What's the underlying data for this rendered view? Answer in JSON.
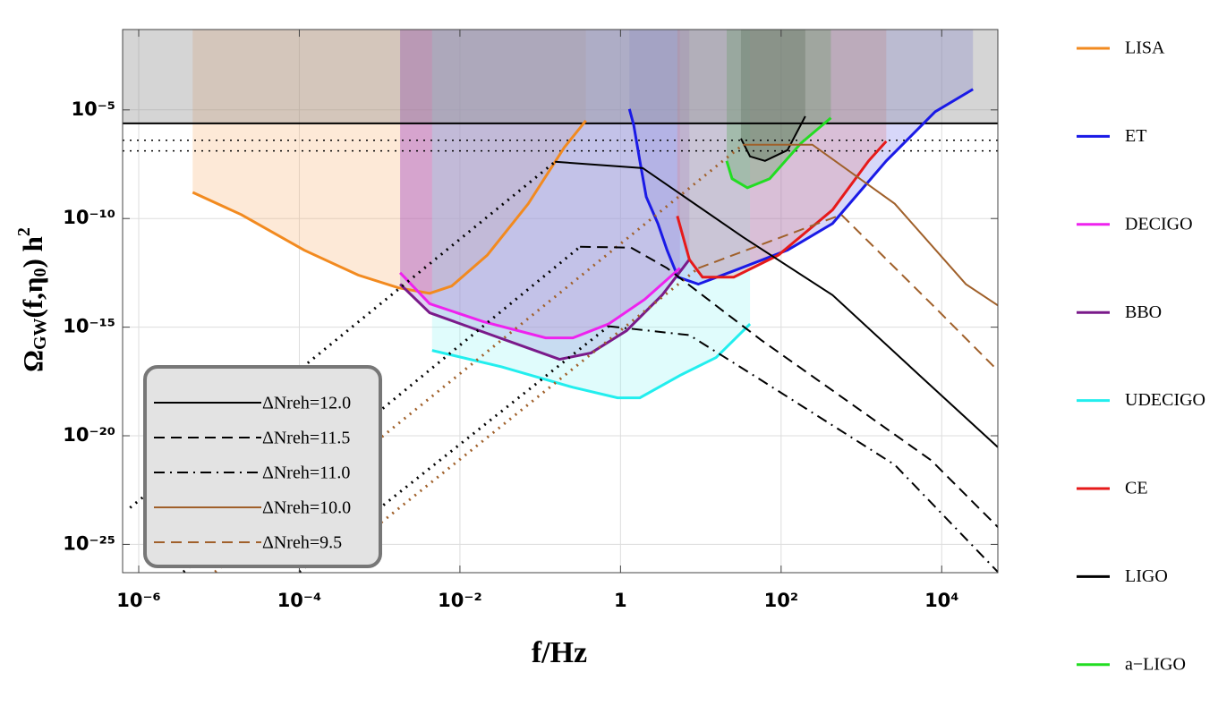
{
  "chart_data": {
    "type": "line",
    "xlabel": "f/Hz",
    "ylabel": [
      "Ω",
      "GW",
      "(f,η",
      "0",
      ") h",
      "2"
    ],
    "xlog": true,
    "ylog": true,
    "grid": true,
    "xlim": [
      6.3e-07,
      50000.0
    ],
    "ylim": [
      5e-27,
      0.05
    ],
    "xticks": [
      {
        "value": 1e-06,
        "label": "10⁻⁶"
      },
      {
        "value": 0.0001,
        "label": "10⁻⁴"
      },
      {
        "value": 0.01,
        "label": "10⁻²"
      },
      1,
      {
        "value": 100,
        "label": "10²"
      },
      {
        "value": 10000.0,
        "label": "10⁴"
      }
    ],
    "yticks": [
      {
        "value": 1e-05,
        "label": "10⁻⁵"
      },
      {
        "value": 1e-10,
        "label": "10⁻¹⁰"
      },
      {
        "value": 1e-15,
        "label": "10⁻¹⁵"
      },
      {
        "value": 1e-20,
        "label": "10⁻²⁰"
      },
      {
        "value": 1e-25,
        "label": "10⁻²⁵"
      }
    ],
    "hlines": [
      {
        "value": 2.4e-06,
        "style": "solid",
        "shade": true
      },
      {
        "value": 4e-07,
        "style": "dotted"
      },
      {
        "value": 1.3e-07,
        "style": "dotted"
      }
    ],
    "detectors": [
      {
        "name": "LISA",
        "color": "#f28a1f",
        "fill": "#f8b070",
        "x": [
          4.7e-06,
          1.9e-05,
          0.000115,
          0.00054,
          0.0017,
          0.0042,
          0.0079,
          0.022,
          0.071,
          0.2,
          0.37
        ],
        "values": [
          1.6e-09,
          1.5e-10,
          3.5e-12,
          2.5e-13,
          6.5e-14,
          3.6e-14,
          7.8e-14,
          2.1e-12,
          4.8e-10,
          1.9e-07,
          3.2e-06
        ]
      },
      {
        "name": "ET",
        "color": "#1a1ae6",
        "fill": "#7070e8",
        "x": [
          1.29,
          1.46,
          1.74,
          2.09,
          2.92,
          3.8,
          5.2,
          9.3,
          25.7,
          120,
          437,
          2040,
          8300,
          24500
        ],
        "values": [
          1.1e-05,
          2e-06,
          4.5e-08,
          1e-09,
          5.9e-11,
          3.5e-12,
          2e-13,
          9.5e-14,
          3.9e-13,
          3.5e-12,
          5.9e-11,
          4.5e-08,
          8.3e-06,
          8.9e-05
        ]
      },
      {
        "name": "DECIGO",
        "color": "#ee22ee",
        "fill": "#e050c0",
        "x": [
          0.0018,
          0.0042,
          0.0195,
          0.117,
          0.255,
          0.71,
          2.0,
          5.5
        ],
        "values": [
          3.2e-13,
          1.2e-14,
          1.8e-15,
          3.2e-16,
          3.2e-16,
          1.4e-15,
          1.9e-14,
          5.2e-13
        ]
      },
      {
        "name": "BBO",
        "color": "#7a1a8a",
        "fill": "#8a60c8",
        "x": [
          0.0018,
          0.0042,
          0.025,
          0.174,
          0.43,
          1.19,
          3.3,
          7.2
        ],
        "values": [
          9.5e-14,
          4.6e-15,
          4.3e-16,
          3.3e-17,
          6.5e-17,
          6.9e-16,
          3e-14,
          1.3e-12
        ]
      },
      {
        "name": "UDECIGO",
        "color": "#22eeee",
        "fill": "#90f4f4",
        "x": [
          0.0045,
          0.033,
          0.255,
          0.92,
          1.74,
          5.5,
          15.5,
          41
        ],
        "values": [
          8.5e-17,
          1.5e-17,
          1.7e-18,
          5.6e-19,
          5.6e-19,
          6e-18,
          4e-17,
          1.4e-15
        ]
      },
      {
        "name": "CE",
        "color": "#e61a1a",
        "fill": "#e08080",
        "x": [
          5.1,
          7.2,
          10.5,
          25.7,
          93,
          437,
          1230,
          2040
        ],
        "values": [
          1.3e-10,
          1.3e-12,
          2e-13,
          2e-13,
          2.1e-12,
          2.5e-10,
          4.5e-08,
          3.6e-07
        ]
      },
      {
        "name": "LIGO",
        "color": "#000000",
        "fill": "#303030",
        "x": [
          31.6,
          41,
          63,
          120,
          200
        ],
        "values": [
          4.8e-07,
          7.2e-08,
          4.5e-08,
          1.4e-07,
          5.1e-06
        ]
      },
      {
        "name": "a−LIGO",
        "color": "#22dd22",
        "fill": "#40a040",
        "x": [
          21,
          24.5,
          38,
          72,
          178,
          417
        ],
        "values": [
          4.5e-08,
          6.8e-09,
          2.6e-09,
          6.8e-09,
          3e-07,
          4.3e-06
        ]
      }
    ],
    "series": [
      {
        "name": "ΔNreh=12.0",
        "color": "#000000",
        "style": "solid",
        "x": [
          0.153,
          1.89,
          33.5,
          437,
          5600,
          50000.0
        ],
        "values": [
          4.1e-08,
          2.1e-08,
          1.4e-11,
          3e-14,
          5e-18,
          3e-21
        ]
      },
      {
        "name": "ΔNreh=11.5",
        "color": "#000000",
        "style": "dashed",
        "x": [
          0.313,
          1.35,
          3.8,
          56,
          7400,
          50000.0
        ],
        "values": [
          5e-12,
          4.6e-12,
          5.2e-13,
          2.6e-16,
          7.4e-22,
          6.3e-25
        ]
      },
      {
        "name": "ΔNreh=11.0",
        "color": "#000000",
        "style": "dashdot",
        "x": [
          0.71,
          7.2,
          56,
          2600,
          50000.0
        ],
        "values": [
          1.1e-15,
          4.3e-16,
          3.7e-18,
          4.6e-22,
          5.4e-27
        ]
      },
      {
        "name": "ΔNreh=10.0",
        "color": "#a0602a",
        "style": "solid",
        "x": [
          33.5,
          245,
          2600,
          20000.0,
          50000.0
        ],
        "values": [
          2.5e-07,
          2.5e-07,
          4.8e-10,
          9.5e-14,
          1e-14
        ]
      },
      {
        "name": "ΔNreh=9.5",
        "color": "#a0602a",
        "style": "dashed",
        "x": [
          9.3,
          562,
          7400,
          50000.0
        ],
        "values": [
          5.2e-13,
          1.5e-10,
          1.2e-14,
          1e-17
        ]
      }
    ],
    "dotted_series": [
      {
        "color": "#000000",
        "x": [
          7.8e-07,
          0.153
        ],
        "values": [
          4.9e-24,
          4.1e-08
        ]
      },
      {
        "color": "#000000",
        "x": [
          3.6e-06,
          0.313
        ],
        "values": [
          5.4e-27,
          5e-12
        ]
      },
      {
        "color": "#000000",
        "x": [
          0.0001,
          0.71
        ],
        "values": [
          5.4e-27,
          1.1e-15
        ]
      },
      {
        "color": "#a0602a",
        "x": [
          8.9e-06,
          33.5
        ],
        "values": [
          5.4e-27,
          2.5e-07
        ]
      },
      {
        "color": "#a0602a",
        "x": [
          0.00089,
          9.3
        ],
        "values": [
          6.3e-25,
          5.2e-13
        ]
      }
    ]
  }
}
